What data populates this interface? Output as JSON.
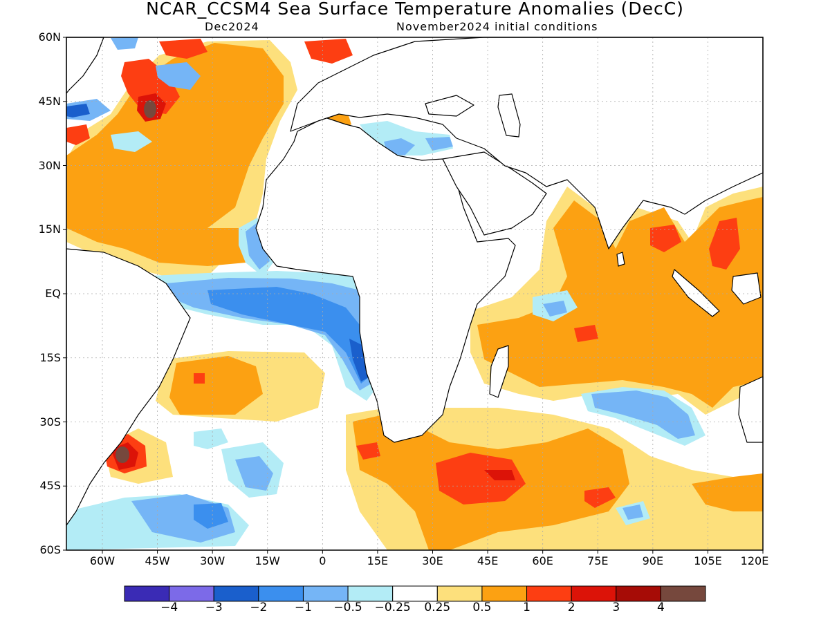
{
  "title": "NCAR_CCSM4 Sea Surface Temperature Anomalies (DecC)",
  "subtitle_left": "Dec2024",
  "subtitle_right": "November2024 initial conditions",
  "lat_labels": [
    "60N",
    "45N",
    "30N",
    "15N",
    "EQ",
    "15S",
    "30S",
    "45S",
    "60S"
  ],
  "lon_labels": [
    "60W",
    "45W",
    "30W",
    "15W",
    "0",
    "15E",
    "30E",
    "45E",
    "60E",
    "75E",
    "90E",
    "105E",
    "120E"
  ],
  "colorbar": {
    "colors": [
      "#3a2bb5",
      "#7c6ae8",
      "#1a5fcc",
      "#3b8fee",
      "#75b5f6",
      "#b3ecf6",
      "#ffffff",
      "#fde07c",
      "#fca112",
      "#fd3e12",
      "#dc1308",
      "#a60c06",
      "#76483d"
    ],
    "labels": [
      "−4",
      "−3",
      "−2",
      "−1",
      "−0.5",
      "−0.25",
      "0.25",
      "0.5",
      "1",
      "2",
      "3",
      "4"
    ]
  },
  "map_colors": {
    "land": "#ffffff",
    "coast": "#000000",
    "grid": "#aaaaaa",
    "neutral": "#ffffff",
    "weak_warm": "#fde07c",
    "warm": "#fca112",
    "hot": "#fd3e12",
    "very_hot": "#dc1308",
    "extreme": "#76483d",
    "weak_cool": "#b3ecf6",
    "cool": "#75b5f6",
    "cold": "#3b8fee",
    "colder": "#1a5fcc",
    "very_cold": "#3a2bb5"
  }
}
